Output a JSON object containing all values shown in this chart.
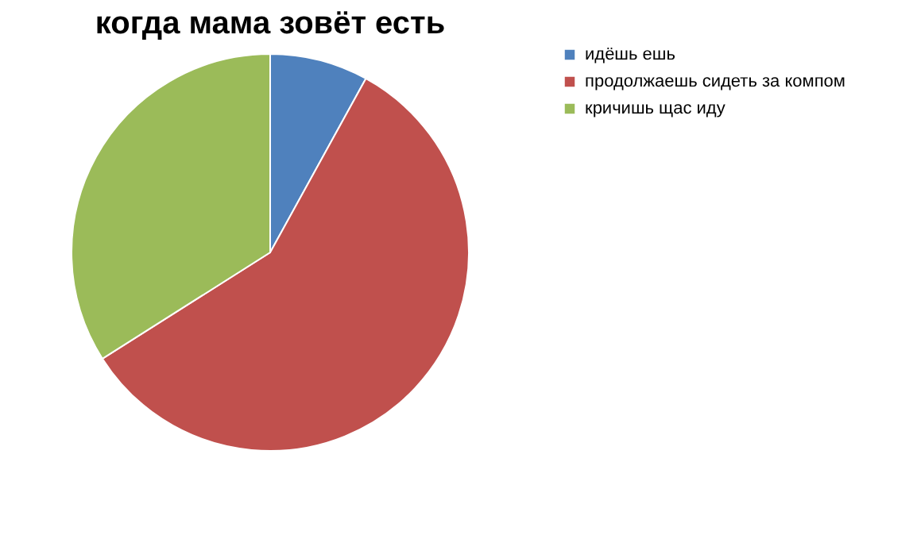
{
  "chart_data": {
    "type": "pie",
    "title": "когда мама зовёт есть",
    "categories": [
      "идёшь ешь",
      "продолжаешь сидеть за компом",
      "кричишь щас иду"
    ],
    "values": [
      8,
      58,
      34
    ],
    "colors": [
      "#4f81bd",
      "#c0504d",
      "#9bbb59"
    ],
    "legend": "right"
  }
}
